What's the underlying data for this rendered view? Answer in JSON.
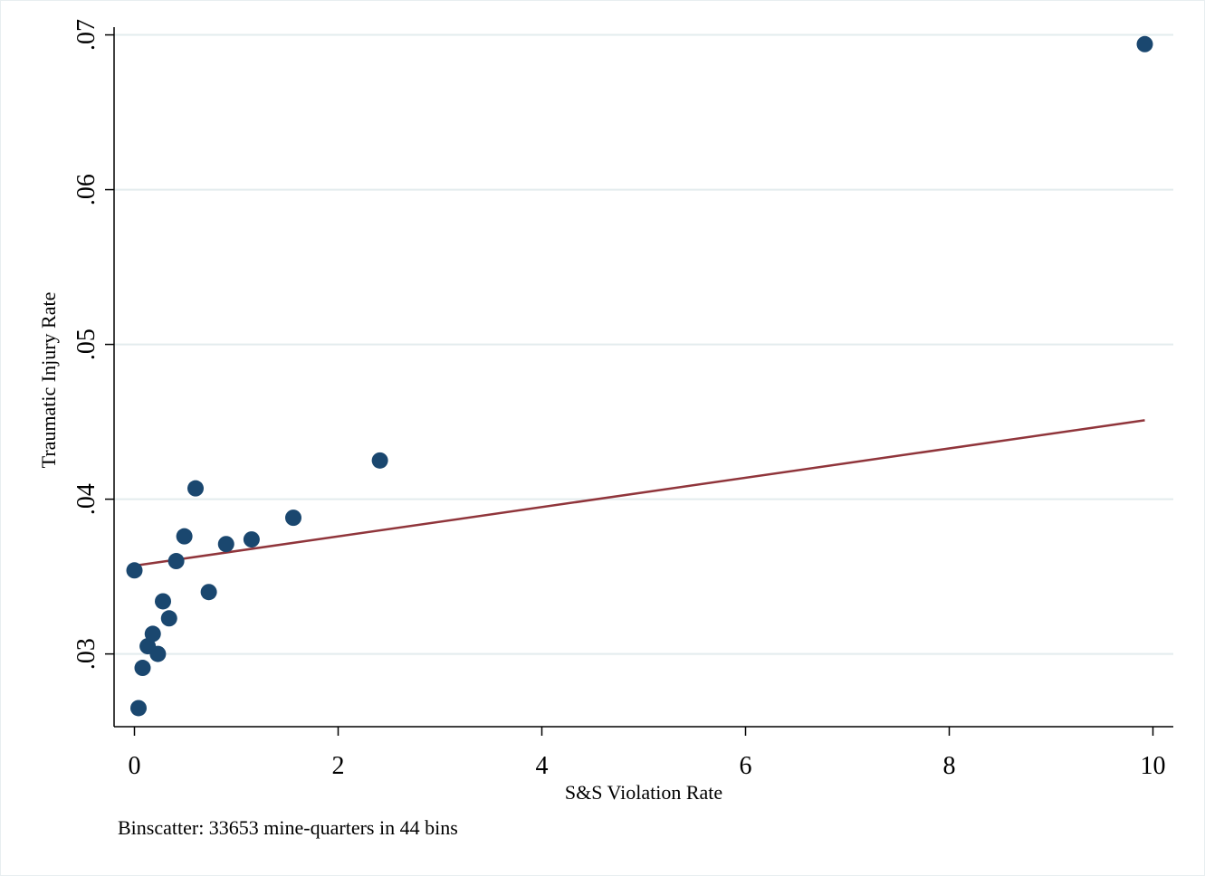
{
  "chart_data": {
    "type": "scatter",
    "xlabel": "S&S Violation Rate",
    "ylabel": "Traumatic Injury Rate",
    "note": "Binscatter: 33653 mine-quarters in 44 bins",
    "xlim": [
      -0.2,
      10.2
    ],
    "ylim": [
      0.0253,
      0.0705
    ],
    "x_ticks": [
      {
        "value": 0,
        "label": "0"
      },
      {
        "value": 2,
        "label": "2"
      },
      {
        "value": 4,
        "label": "4"
      },
      {
        "value": 6,
        "label": "6"
      },
      {
        "value": 8,
        "label": "8"
      },
      {
        "value": 10,
        "label": "10"
      }
    ],
    "y_ticks": [
      {
        "value": 0.03,
        "label": ".03"
      },
      {
        "value": 0.04,
        "label": ".04"
      },
      {
        "value": 0.05,
        "label": ".05"
      },
      {
        "value": 0.06,
        "label": ".06"
      },
      {
        "value": 0.07,
        "label": ".07"
      }
    ],
    "grid": true,
    "points": [
      {
        "x": 0.0,
        "y": 0.0354
      },
      {
        "x": 0.04,
        "y": 0.0265
      },
      {
        "x": 0.08,
        "y": 0.0291
      },
      {
        "x": 0.13,
        "y": 0.0305
      },
      {
        "x": 0.18,
        "y": 0.0313
      },
      {
        "x": 0.23,
        "y": 0.03
      },
      {
        "x": 0.28,
        "y": 0.0334
      },
      {
        "x": 0.34,
        "y": 0.0323
      },
      {
        "x": 0.41,
        "y": 0.036
      },
      {
        "x": 0.49,
        "y": 0.0376
      },
      {
        "x": 0.6,
        "y": 0.0407
      },
      {
        "x": 0.73,
        "y": 0.034
      },
      {
        "x": 0.9,
        "y": 0.0371
      },
      {
        "x": 1.15,
        "y": 0.0374
      },
      {
        "x": 1.56,
        "y": 0.0388
      },
      {
        "x": 2.41,
        "y": 0.0425
      },
      {
        "x": 9.92,
        "y": 0.0694
      }
    ],
    "fit_line": {
      "x": [
        0.0,
        9.92
      ],
      "y": [
        0.0357,
        0.0451
      ]
    },
    "colors": {
      "marker": "#1a476f",
      "fit": "#90353b",
      "grid": "#e3ecee",
      "axis": "#000000",
      "frame": "#e8eef0"
    }
  }
}
